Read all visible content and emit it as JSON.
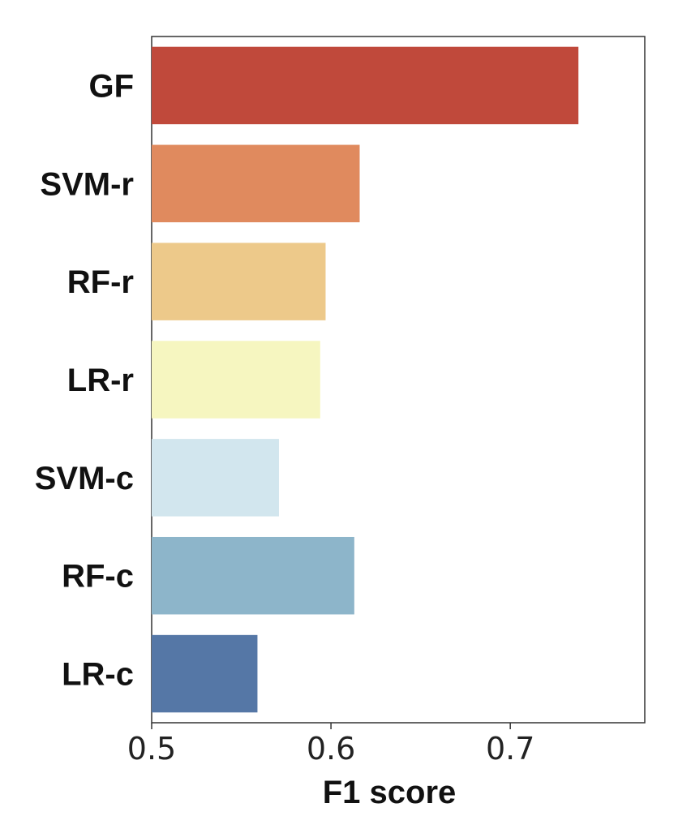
{
  "chart_data": {
    "type": "bar",
    "orientation": "horizontal",
    "categories": [
      "GF",
      "SVM-r",
      "RF-r",
      "LR-r",
      "SVM-c",
      "RF-c",
      "LR-c"
    ],
    "values": [
      0.738,
      0.616,
      0.597,
      0.594,
      0.571,
      0.613,
      0.559
    ],
    "colors": [
      "#c0493b",
      "#e08a5e",
      "#edc98a",
      "#f6f6c0",
      "#d2e6ee",
      "#8db5ca",
      "#5577a6"
    ],
    "xlabel": "F1 score",
    "ylabel": "",
    "title": "",
    "xlim": [
      0.5,
      0.775
    ],
    "xticks": [
      0.5,
      0.6,
      0.7
    ],
    "xtick_labels": [
      "0.5",
      "0.6",
      "0.7"
    ],
    "grid": false,
    "legend": "none"
  }
}
